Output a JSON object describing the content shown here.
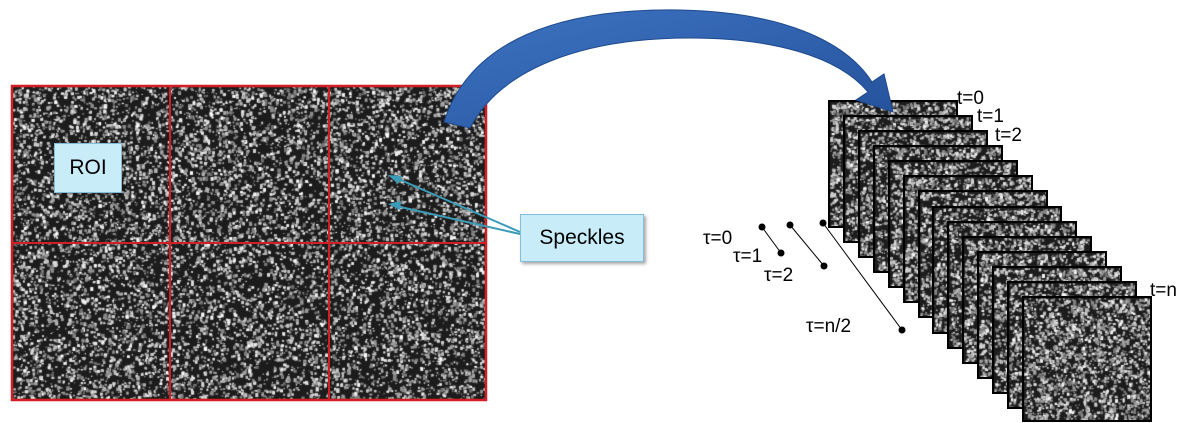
{
  "labels": {
    "roi": "ROI",
    "speckles": "Speckles",
    "frame_first": "t=0",
    "frame_second": "t=1",
    "frame_third": "t=2",
    "frame_last": "t=n",
    "lag_0": "τ=0",
    "lag_1": "τ=1",
    "lag_2": "τ=2",
    "lag_half": "τ=n/2"
  },
  "grid": {
    "rows": 2,
    "cols": 3
  },
  "frame_stack": {
    "frame_count": 14
  },
  "colors": {
    "grid_border": "#d21f26",
    "arrow": "#2f62ad",
    "pointer": "#3a9cb8",
    "callout_fill": "#c9ecf9",
    "speckle_dark": "#1c1c1c"
  }
}
